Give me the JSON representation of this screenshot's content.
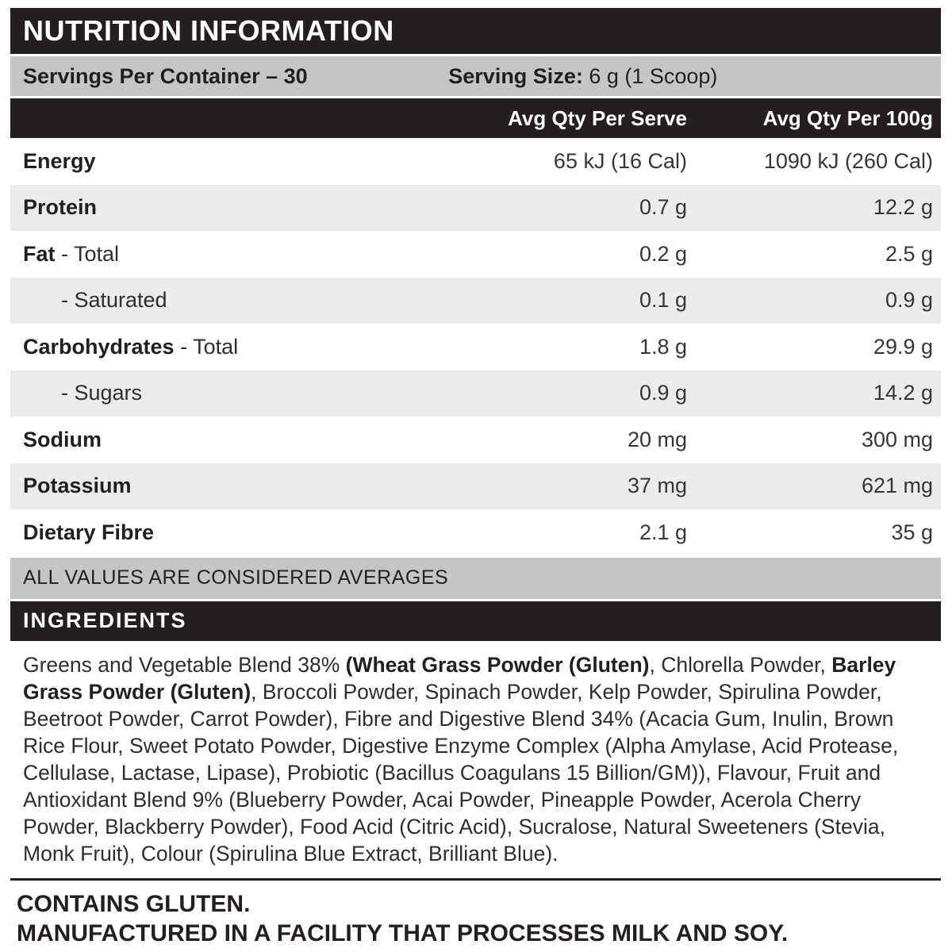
{
  "header": {
    "title": "NUTRITION INFORMATION"
  },
  "servings": {
    "per_container": "Servings Per Container – 30",
    "size_label": "Serving Size:",
    "size_value": " 6 g (1 Scoop)"
  },
  "table": {
    "col_per_serve": "Avg Qty Per Serve",
    "col_per_100g": "Avg Qty Per 100g",
    "rows": [
      {
        "label_bold": "Energy",
        "label_rest": "",
        "per_serve": "65 kJ (16 Cal)",
        "per_100g": "1090 kJ (260 Cal)"
      },
      {
        "label_bold": "Protein",
        "label_rest": "",
        "per_serve": "0.7 g",
        "per_100g": "12.2 g"
      },
      {
        "label_bold": "Fat",
        "label_rest": " - Total",
        "per_serve": "0.2 g",
        "per_100g": "2.5 g"
      },
      {
        "label_bold": "",
        "label_rest": "- Saturated",
        "per_serve": "0.1 g",
        "per_100g": "0.9 g"
      },
      {
        "label_bold": "Carbohydrates",
        "label_rest": " - Total",
        "per_serve": "1.8 g",
        "per_100g": "29.9 g"
      },
      {
        "label_bold": "",
        "label_rest": "- Sugars",
        "per_serve": "0.9 g",
        "per_100g": "14.2 g"
      },
      {
        "label_bold": "Sodium",
        "label_rest": "",
        "per_serve": "20 mg",
        "per_100g": "300 mg"
      },
      {
        "label_bold": "Potassium",
        "label_rest": "",
        "per_serve": "37 mg",
        "per_100g": "621 mg"
      },
      {
        "label_bold": "Dietary Fibre",
        "label_rest": "",
        "per_serve": "2.1 g",
        "per_100g": "35 g"
      }
    ]
  },
  "notes": {
    "averages": "ALL VALUES ARE CONSIDERED AVERAGES"
  },
  "ingredients": {
    "heading": "INGREDIENTS",
    "segments": [
      {
        "text": "Greens and Vegetable Blend 38% "
      },
      {
        "text": "(Wheat Grass Powder (Gluten)",
        "bold": true
      },
      {
        "text": ", Chlorella Powder, "
      },
      {
        "text": "Barley Grass Powder (Gluten)",
        "bold": true
      },
      {
        "text": ", Broccoli Powder, Spinach Powder, Kelp Powder, Spirulina Powder, Beetroot Powder, Carrot Powder), Fibre and Digestive Blend 34% (Acacia Gum, Inulin, Brown Rice Flour, Sweet Potato Powder, Digestive Enzyme Complex (Alpha Amylase, Acid Protease, Cellulase, Lactase, Lipase), Probiotic (Bacillus Coagulans 15 Billion/GM)), Flavour, Fruit and Antioxidant Blend 9% (Blueberry Powder, Acai Powder, Pineapple Powder, Acerola Cherry Powder, Blackberry Powder), Food Acid (Citric Acid), Sucralose, Natural Sweeteners (Stevia, Monk Fruit), Colour (Spirulina Blue Extract, Brilliant Blue)."
      }
    ]
  },
  "allergens": {
    "line1": "CONTAINS GLUTEN.",
    "line2": "MANUFACTURED IN A FACILITY THAT PROCESSES MILK AND SOY."
  },
  "colors": {
    "black": "#231f20",
    "silver": "#c3c5c7",
    "row_alt": "#ebebec"
  }
}
